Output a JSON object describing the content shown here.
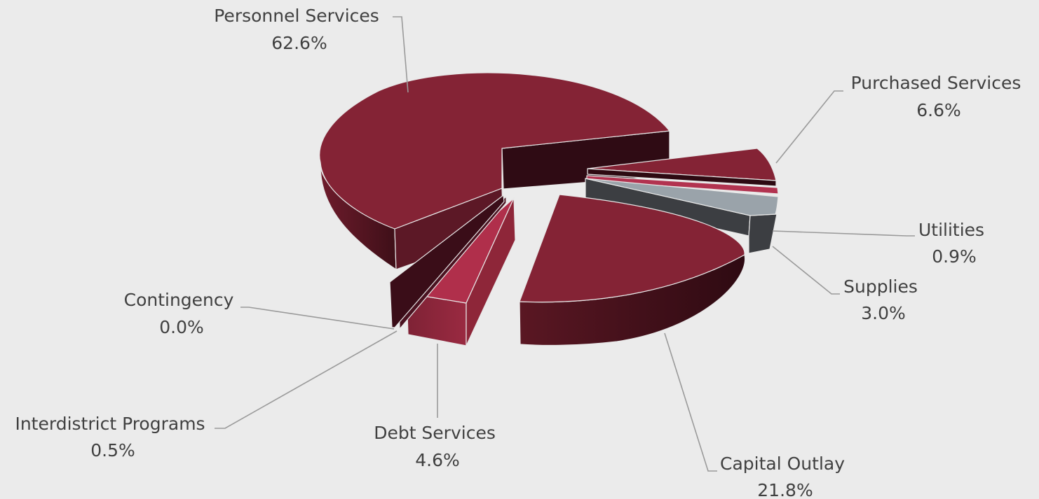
{
  "chart_data": {
    "type": "pie",
    "style": "3d-exploded",
    "title": "",
    "slices": [
      {
        "label": "Personnel Services",
        "value_label": "62.6%",
        "value": 62.6,
        "color": "#842335"
      },
      {
        "label": "Purchased Services",
        "value_label": "6.6%",
        "value": 6.6,
        "color": "#842335"
      },
      {
        "label": "Utilities",
        "value_label": "0.9%",
        "value": 0.9,
        "color": "#a92d46"
      },
      {
        "label": "Supplies",
        "value_label": "3.0%",
        "value": 3.0,
        "color": "#8e969c"
      },
      {
        "label": "Capital Outlay",
        "value_label": "21.8%",
        "value": 21.8,
        "color": "#842335"
      },
      {
        "label": "Debt Services",
        "value_label": "4.6%",
        "value": 4.6,
        "color": "#ad2e4a"
      },
      {
        "label": "Interdistrict Programs",
        "value_label": "0.5%",
        "value": 0.5,
        "color": "#7a1f30"
      },
      {
        "label": "Contingency",
        "value_label": "0.0%",
        "value": 0.0,
        "color": "#6e1c2c"
      }
    ]
  }
}
